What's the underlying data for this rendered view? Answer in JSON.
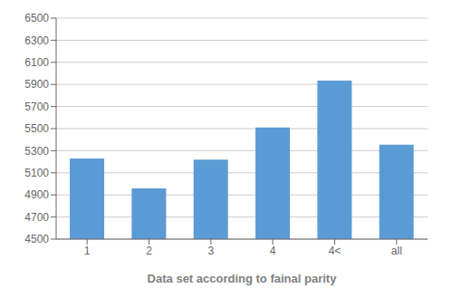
{
  "chart_data": {
    "type": "bar",
    "xlabel": "Data set according to fainal parity",
    "categories": [
      "1",
      "2",
      "3",
      "4",
      "4<",
      "all"
    ],
    "values": [
      5230,
      4960,
      5220,
      5510,
      5935,
      5355
    ],
    "color": "#5B9BD5",
    "ylim": [
      4500,
      6500
    ],
    "yticks": [
      4500,
      4700,
      4900,
      5100,
      5300,
      5500,
      5700,
      5900,
      6100,
      6300,
      6500
    ],
    "grid": true
  }
}
